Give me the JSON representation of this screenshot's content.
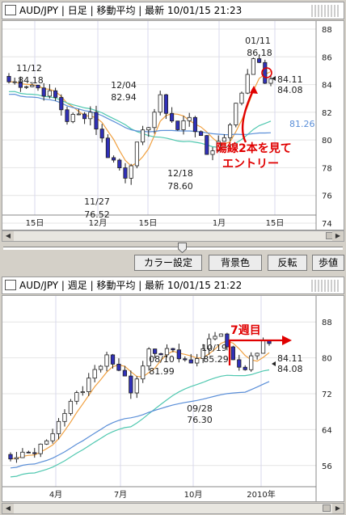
{
  "top": {
    "title": "AUD/JPY | 日足 | 移動平均 | 最新 10/01/15 21:23",
    "x_labels": [
      "15日",
      "12月",
      "15日",
      "1月",
      "15日"
    ],
    "y_labels": [
      "88",
      "86",
      "84",
      "82",
      "80",
      "78",
      "76",
      "74"
    ],
    "price_tags": [
      "84.11",
      "84.08"
    ],
    "ma_value": "81.26",
    "points": [
      {
        "date": "11/12",
        "value": "84.18"
      },
      {
        "date": "12/04",
        "value": "82.94"
      },
      {
        "date": "11/27",
        "value": "76.52"
      },
      {
        "date": "12/18",
        "value": "78.60"
      },
      {
        "date": "01/11",
        "value": "86.18"
      }
    ],
    "annotation_line1": "陽線2本を見て",
    "annotation_line2": "エントリー"
  },
  "toolbar": {
    "color_settings": "カラー設定",
    "background_color": "背景色",
    "invert": "反転",
    "step": "歩値"
  },
  "bottom": {
    "title": "AUD/JPY | 週足 | 移動平均 | 最新 10/01/15 21:22",
    "x_labels": [
      "4月",
      "7月",
      "10月",
      "2010年"
    ],
    "y_labels": [
      "88",
      "80",
      "72",
      "64",
      "56"
    ],
    "price_tags": [
      "84.11",
      "84.08"
    ],
    "points": [
      {
        "date": "08/10",
        "value": "81.99"
      },
      {
        "date": "10/19",
        "value": "85.29"
      },
      {
        "date": "09/28",
        "value": "76.30"
      }
    ],
    "annotation": "7週目"
  },
  "colors": {
    "bull_candle": "#ffffff",
    "bear_candle": "#3030b8",
    "ma_short": "#f0a040",
    "ma_mid": "#50c8b0",
    "ma_long": "#5b8fd8",
    "annotation": "#e00000"
  }
}
